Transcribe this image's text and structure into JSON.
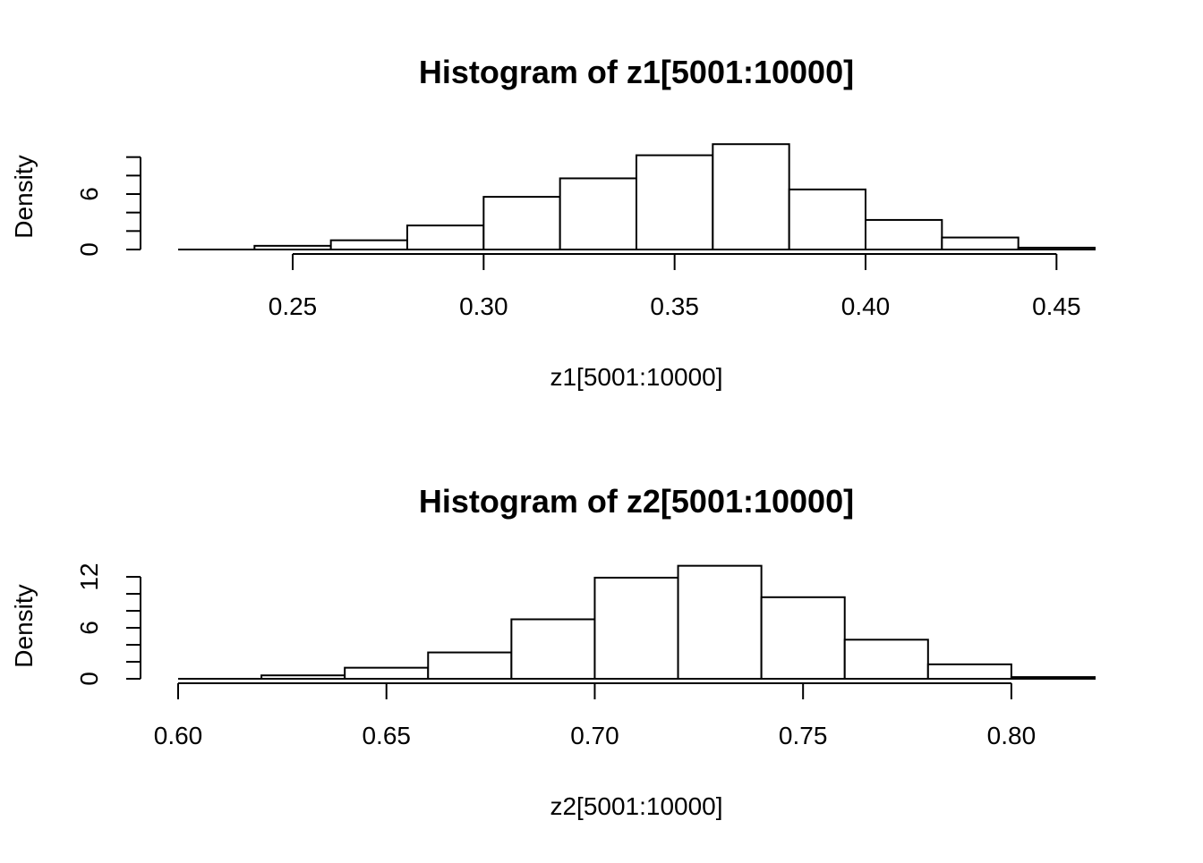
{
  "chart_data": [
    {
      "type": "bar",
      "title": "Histogram of z1[5001:10000]",
      "xlabel": "z1[5001:10000]",
      "ylabel": "Density",
      "xlim": [
        0.22,
        0.46
      ],
      "ylim": [
        0,
        12
      ],
      "x_ticks": [
        0.25,
        0.3,
        0.35,
        0.4,
        0.45
      ],
      "x_tick_labels": [
        "0.25",
        "0.30",
        "0.35",
        "0.40",
        "0.45"
      ],
      "y_ticks": [
        0,
        6
      ],
      "y_tick_labels": [
        "0",
        "6"
      ],
      "y_minor_ticks": [
        0,
        2,
        4,
        6,
        8,
        10
      ],
      "bins": [
        {
          "x0": 0.22,
          "x1": 0.24,
          "density": 0.0
        },
        {
          "x0": 0.24,
          "x1": 0.26,
          "density": 0.4
        },
        {
          "x0": 0.26,
          "x1": 0.28,
          "density": 1.0
        },
        {
          "x0": 0.28,
          "x1": 0.3,
          "density": 2.6
        },
        {
          "x0": 0.3,
          "x1": 0.32,
          "density": 5.7
        },
        {
          "x0": 0.32,
          "x1": 0.34,
          "density": 7.7
        },
        {
          "x0": 0.34,
          "x1": 0.36,
          "density": 10.2
        },
        {
          "x0": 0.36,
          "x1": 0.38,
          "density": 11.4
        },
        {
          "x0": 0.38,
          "x1": 0.4,
          "density": 6.5
        },
        {
          "x0": 0.4,
          "x1": 0.42,
          "density": 3.2
        },
        {
          "x0": 0.42,
          "x1": 0.44,
          "density": 1.3
        },
        {
          "x0": 0.44,
          "x1": 0.46,
          "density": 0.2
        }
      ],
      "grid": false
    },
    {
      "type": "bar",
      "title": "Histogram of z2[5001:10000]",
      "xlabel": "z2[5001:10000]",
      "ylabel": "Density",
      "xlim": [
        0.6,
        0.82
      ],
      "ylim": [
        0,
        14
      ],
      "x_ticks": [
        0.6,
        0.65,
        0.7,
        0.75,
        0.8
      ],
      "x_tick_labels": [
        "0.60",
        "0.65",
        "0.70",
        "0.75",
        "0.80"
      ],
      "y_ticks": [
        0,
        6,
        12
      ],
      "y_tick_labels": [
        "0",
        "6",
        "12"
      ],
      "y_minor_ticks": [
        0,
        2,
        4,
        6,
        8,
        10,
        12
      ],
      "bins": [
        {
          "x0": 0.6,
          "x1": 0.62,
          "density": 0.0
        },
        {
          "x0": 0.62,
          "x1": 0.64,
          "density": 0.4
        },
        {
          "x0": 0.64,
          "x1": 0.66,
          "density": 1.3
        },
        {
          "x0": 0.66,
          "x1": 0.68,
          "density": 3.1
        },
        {
          "x0": 0.68,
          "x1": 0.7,
          "density": 7.0
        },
        {
          "x0": 0.7,
          "x1": 0.72,
          "density": 11.9
        },
        {
          "x0": 0.72,
          "x1": 0.74,
          "density": 13.3
        },
        {
          "x0": 0.74,
          "x1": 0.76,
          "density": 9.6
        },
        {
          "x0": 0.76,
          "x1": 0.78,
          "density": 4.6
        },
        {
          "x0": 0.78,
          "x1": 0.8,
          "density": 1.7
        },
        {
          "x0": 0.8,
          "x1": 0.82,
          "density": 0.2
        }
      ],
      "grid": false
    }
  ]
}
